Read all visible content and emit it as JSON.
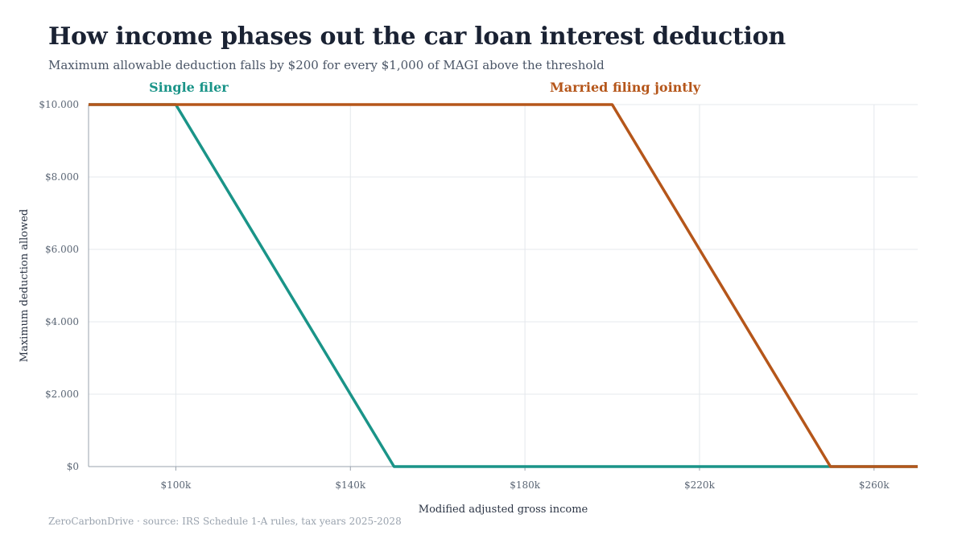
{
  "title": "How income phases out the car loan interest deduction",
  "subtitle": "Maximum allowable deduction falls by $200 for every $1,000 of MAGI above the threshold",
  "source": "ZeroCarbonDrive · source: IRS Schedule 1-A rules, tax years 2025-2028",
  "chart_data": {
    "type": "line",
    "xlabel": "Modified adjusted gross income",
    "ylabel": "Maximum deduction allowed",
    "xlim": [
      80000,
      270000
    ],
    "ylim": [
      0,
      10000
    ],
    "x_ticks": [
      100000,
      140000,
      180000,
      220000,
      260000
    ],
    "x_tick_labels": [
      "$100k",
      "$140k",
      "$180k",
      "$220k",
      "$260k"
    ],
    "y_ticks": [
      0,
      2000,
      4000,
      6000,
      8000,
      10000
    ],
    "y_tick_labels": [
      "$0",
      "$2.000",
      "$4.000",
      "$6.000",
      "$8.000",
      "$10.000"
    ],
    "grid": true,
    "legend": "direct labels above lines",
    "series": [
      {
        "name": "Single filer",
        "color": "#1a9488",
        "points": [
          [
            80000,
            10000
          ],
          [
            100000,
            10000
          ],
          [
            150000,
            0
          ],
          [
            270000,
            0
          ]
        ]
      },
      {
        "name": "Married filing jointly",
        "color": "#b5561a",
        "points": [
          [
            80000,
            10000
          ],
          [
            200000,
            10000
          ],
          [
            250000,
            0
          ],
          [
            270000,
            0
          ]
        ]
      }
    ]
  }
}
